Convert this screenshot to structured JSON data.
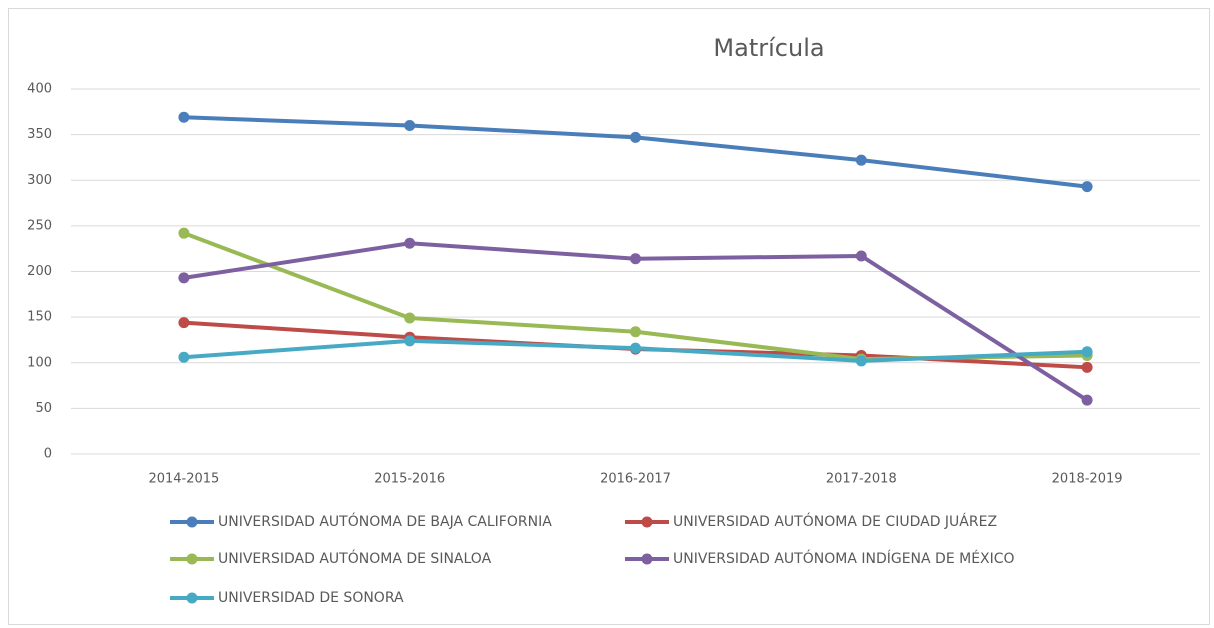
{
  "chart_data": {
    "type": "line",
    "title": "Matrícula",
    "categories": [
      "2014-2015",
      "2015-2016",
      "2016-2017",
      "2017-2018",
      "2018-2019"
    ],
    "series": [
      {
        "name": "UNIVERSIDAD AUTÓNOMA DE BAJA CALIFORNIA",
        "color": "#4a7ebb",
        "values": [
          369,
          360,
          347,
          322,
          293
        ]
      },
      {
        "name": "UNIVERSIDAD AUTÓNOMA DE CIUDAD JUÁREZ",
        "color": "#be4b48",
        "values": [
          144,
          128,
          115,
          108,
          95
        ]
      },
      {
        "name": "UNIVERSIDAD AUTÓNOMA DE SINALOA",
        "color": "#98b954",
        "values": [
          242,
          149,
          134,
          104,
          108
        ]
      },
      {
        "name": "UNIVERSIDAD AUTÓNOMA INDÍGENA DE MÉXICO",
        "color": "#7d60a0",
        "values": [
          193,
          231,
          214,
          217,
          59
        ]
      },
      {
        "name": "UNIVERSIDAD DE SONORA",
        "color": "#46aac5",
        "values": [
          106,
          124,
          116,
          102,
          112
        ]
      }
    ],
    "ylim": [
      0,
      400
    ],
    "yticks": [
      0,
      50,
      100,
      150,
      200,
      250,
      300,
      350,
      400
    ],
    "grid": true
  }
}
